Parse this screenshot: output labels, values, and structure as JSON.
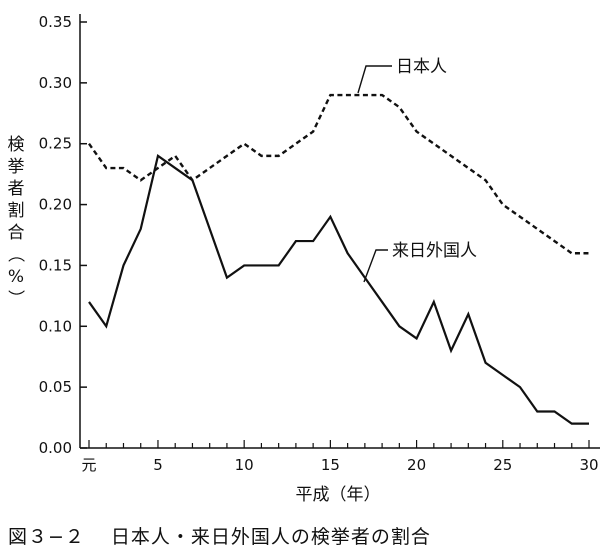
{
  "chart_data": {
    "type": "line",
    "x": [
      1,
      2,
      3,
      4,
      5,
      6,
      7,
      8,
      9,
      10,
      11,
      12,
      13,
      14,
      15,
      16,
      17,
      18,
      19,
      20,
      21,
      22,
      23,
      24,
      25,
      26,
      27,
      28,
      29,
      30
    ],
    "series": [
      {
        "name": "日本人",
        "style": "dashed",
        "values": [
          0.25,
          0.23,
          0.23,
          0.22,
          0.23,
          0.24,
          0.22,
          0.23,
          0.24,
          0.25,
          0.24,
          0.24,
          0.25,
          0.26,
          0.29,
          0.29,
          0.29,
          0.29,
          0.28,
          0.26,
          0.25,
          0.24,
          0.23,
          0.22,
          0.2,
          0.19,
          0.18,
          0.17,
          0.16,
          0.16
        ]
      },
      {
        "name": "来日外国人",
        "style": "solid",
        "values": [
          0.12,
          0.1,
          0.15,
          0.18,
          0.24,
          0.23,
          0.22,
          0.18,
          0.14,
          0.15,
          0.15,
          0.15,
          0.17,
          0.17,
          0.19,
          0.16,
          0.14,
          0.12,
          0.1,
          0.09,
          0.12,
          0.08,
          0.11,
          0.07,
          0.06,
          0.05,
          0.03,
          0.03,
          0.02,
          0.02
        ]
      }
    ],
    "ylim": [
      0,
      0.35
    ],
    "xlim": [
      1,
      30
    ],
    "yticks": [
      "0.00",
      "0.05",
      "0.10",
      "0.15",
      "0.20",
      "0.25",
      "0.30",
      "0.35"
    ],
    "xtick_labels": [
      {
        "x": 1,
        "label": "元"
      },
      {
        "x": 5,
        "label": "5"
      },
      {
        "x": 10,
        "label": "10"
      },
      {
        "x": 15,
        "label": "15"
      },
      {
        "x": 20,
        "label": "20"
      },
      {
        "x": 25,
        "label": "25"
      },
      {
        "x": 30,
        "label": "30"
      }
    ],
    "xlabel": "平成（年）",
    "ylabel": "検挙者割合（%）",
    "grid": false,
    "legend": "inline labels"
  },
  "caption": {
    "figure_number": "図３−２",
    "title": "日本人・来日外国人の検挙者の割合"
  }
}
